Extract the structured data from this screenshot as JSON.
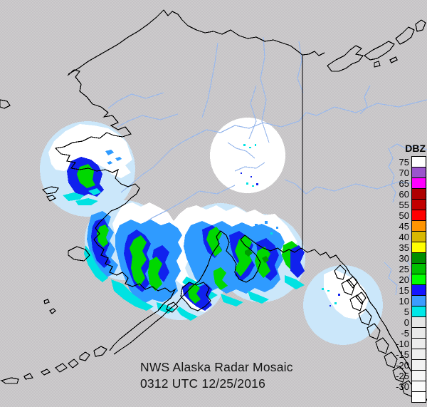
{
  "caption": {
    "line1": "NWS Alaska Radar Mosaic",
    "line2": "0312 UTC 12/25/2016"
  },
  "legend": {
    "title": "DBZ",
    "entries": [
      {
        "label": "75",
        "color": "#ffffff"
      },
      {
        "label": "70",
        "color": "#9a55cc"
      },
      {
        "label": "65",
        "color": "#ff00ff"
      },
      {
        "label": "60",
        "color": "#ae0000"
      },
      {
        "label": "55",
        "color": "#c20000"
      },
      {
        "label": "50",
        "color": "#fe0000"
      },
      {
        "label": "45",
        "color": "#ff9400"
      },
      {
        "label": "40",
        "color": "#d8b800"
      },
      {
        "label": "35",
        "color": "#ffff00"
      },
      {
        "label": "30",
        "color": "#008e00"
      },
      {
        "label": "25",
        "color": "#00c000"
      },
      {
        "label": "20",
        "color": "#00ff00"
      },
      {
        "label": "15",
        "color": "#1414ff"
      },
      {
        "label": "10",
        "color": "#3c9cff"
      },
      {
        "label": "5",
        "color": "#00e8e8"
      },
      {
        "label": "0",
        "color": "#e6e6e6"
      },
      {
        "label": "-5",
        "color": "#e9e9e9"
      },
      {
        "label": "-10",
        "color": "#ececec"
      },
      {
        "label": "-15",
        "color": "#efefef"
      },
      {
        "label": "-20",
        "color": "#f2f2f2"
      },
      {
        "label": "-25",
        "color": "#f6f6f6"
      },
      {
        "label": "-30",
        "color": "#fafafa"
      },
      {
        "label": "",
        "color": "#ffffff"
      }
    ]
  },
  "colors": {
    "background": "#cccccc",
    "dither_dot": "#b2a6b6",
    "coverage": "#cbe7fa",
    "river": "#9ab9ec",
    "coastline": "#000000",
    "echo_cyan": "#00e2e2",
    "echo_light_blue": "#2f9bff",
    "echo_blue": "#1021ee",
    "echo_green": "#00d800",
    "echo_dark_green": "#009c00",
    "echo_white": "#ffffff"
  }
}
